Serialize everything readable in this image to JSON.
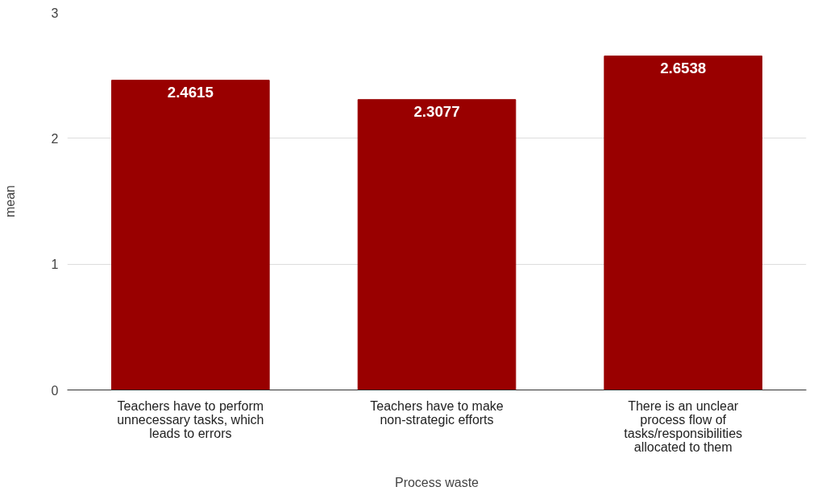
{
  "chart_data": {
    "type": "bar",
    "xlabel": "Process waste",
    "ylabel": "mean",
    "categories": [
      "Teachers have to perform unnecessary tasks, which leads to errors",
      "Teachers have to make non-strategic efforts",
      "There is an unclear process flow of tasks/responsibilities allocated to them"
    ],
    "values": [
      2.4615,
      2.3077,
      2.6538
    ],
    "color": "#990000",
    "data_labels": true,
    "ylim": [
      0,
      3
    ],
    "yticks": [
      0,
      1,
      2,
      3
    ],
    "grid": "y"
  }
}
